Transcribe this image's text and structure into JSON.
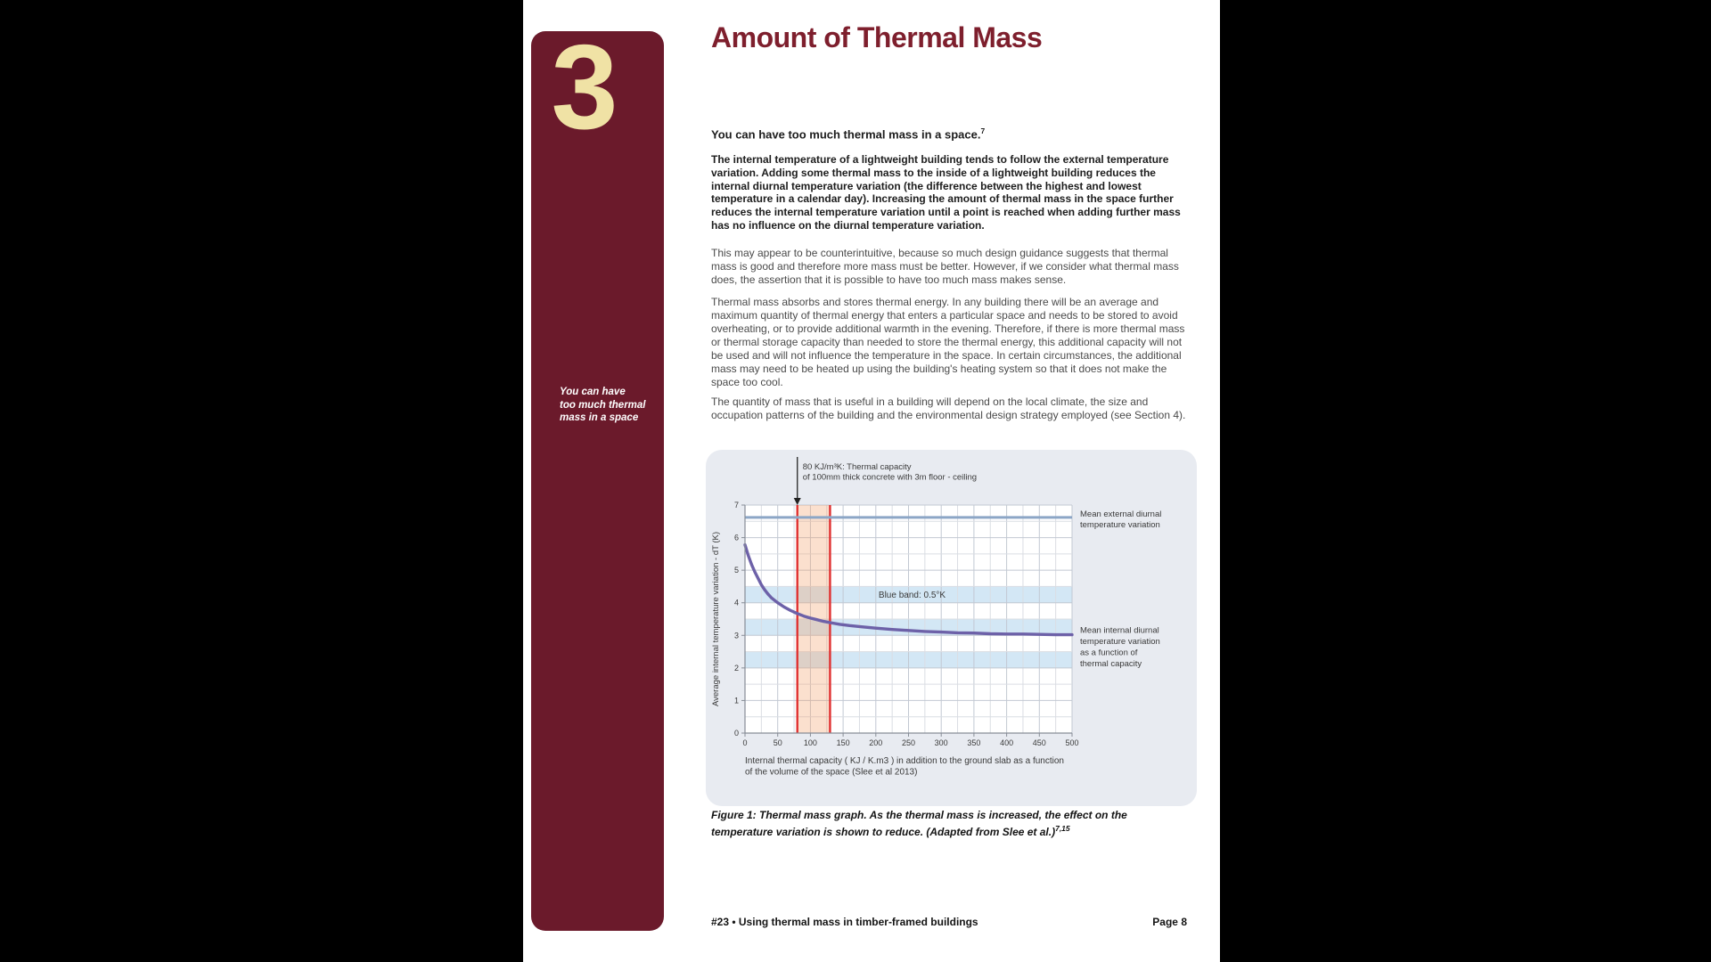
{
  "page": {
    "section_number": "3",
    "title": "Amount of Thermal Mass",
    "sidebar_note": [
      "You can have",
      "too much thermal",
      "mass in a space"
    ],
    "lead": {
      "text": "You can have too much thermal mass in a space.",
      "sup": "7"
    },
    "bold_paragraph": "The internal temperature of a lightweight building tends to follow the external temperature variation. Adding some thermal mass to the inside of a lightweight building reduces the internal diurnal temperature variation (the difference between the highest and lowest temperature in a calendar day). Increasing the amount of thermal mass in the space further reduces the internal temperature variation until a point is reached when adding further mass has no influence on the diurnal temperature variation.",
    "paragraphs": [
      "This may appear to be counterintuitive, because so much design guidance suggests that thermal mass is good and therefore more mass must be better. However, if we consider what thermal mass does, the assertion that it is possible to have too much mass makes sense.",
      "Thermal mass absorbs and stores thermal energy. In any building there will be an average and maximum quantity of thermal energy that enters a particular space and needs to be stored to avoid overheating, or to provide additional warmth in the evening. Therefore, if there is more thermal mass or thermal storage capacity than needed to store the thermal energy, this additional capacity will not be used and will not influence the temperature in the space. In certain circumstances, the additional mass may need to be heated up using the building's heating system so that it does not make the space too cool.",
      "The quantity of mass that is useful in a building will depend on the local climate, the size and occupation patterns of the building and the environmental design strategy employed (see Section 4)."
    ],
    "figure_caption": {
      "text": "Figure 1: Thermal mass graph. As the thermal mass is increased, the effect on the temperature variation is shown to reduce. (Adapted from Slee et al.)",
      "sup": "7,15"
    },
    "footer": {
      "left": "#23 • Using thermal mass in timber-framed buildings",
      "right": "Page 8"
    }
  },
  "colors": {
    "band_maroon": "#6B1A2B",
    "title_red": "#7E1F2D",
    "chapter_number_cream": "#F0E2A5",
    "panel_background": "#E8EBF1"
  },
  "chart_data": {
    "type": "line",
    "xlabel": "Internal thermal capacity ( KJ / K.m3 ) in addition to the ground slab as a function of the volume of the space (Slee et al 2013)",
    "xlabel_lines": [
      "Internal thermal capacity ( KJ / K.m3 ) in addition to the ground slab as a function",
      "of the volume of the space (Slee et al 2013)"
    ],
    "ylabel": "Average internal temperature variation - dT (K)",
    "xlim": [
      0,
      500
    ],
    "ylim": [
      0,
      7
    ],
    "x_ticks": [
      0,
      50,
      100,
      150,
      200,
      250,
      300,
      350,
      400,
      450,
      500
    ],
    "y_ticks": [
      0,
      1,
      2,
      3,
      4,
      5,
      6,
      7
    ],
    "x_minor_step": 25,
    "y_minor_step": 0.5,
    "grid": true,
    "annotation": {
      "x": 80,
      "lines": [
        "80 KJ/m³K: Thermal capacity",
        "of 100mm thick concrete with 3m floor - ceiling"
      ]
    },
    "external_line": {
      "value": 6.62,
      "color": "#8CA6C6",
      "label_lines": [
        "Mean external diurnal",
        "temperature variation"
      ]
    },
    "internal_label_lines": [
      "Mean internal diurnal",
      "temperature variation",
      "as a function of",
      "thermal capacity"
    ],
    "blue_bands": {
      "ranges": [
        [
          2.0,
          2.5
        ],
        [
          3.0,
          3.5
        ],
        [
          4.0,
          4.5
        ]
      ],
      "color": "#D3E7F5",
      "label": "Blue band: 0.5°K"
    },
    "red_band": {
      "from": 80,
      "to": 130,
      "fill": "#F2A066",
      "fill_opacity": 0.32,
      "edge": "#E03030"
    },
    "series": [
      {
        "name": "Mean internal diurnal temperature variation as a function of thermal capacity",
        "color": "#6D61A8",
        "points": [
          [
            0,
            5.78
          ],
          [
            5,
            5.45
          ],
          [
            10,
            5.18
          ],
          [
            15,
            4.95
          ],
          [
            20,
            4.75
          ],
          [
            25,
            4.55
          ],
          [
            30,
            4.4
          ],
          [
            35,
            4.27
          ],
          [
            40,
            4.16
          ],
          [
            45,
            4.08
          ],
          [
            50,
            4.0
          ],
          [
            60,
            3.87
          ],
          [
            70,
            3.76
          ],
          [
            80,
            3.67
          ],
          [
            90,
            3.59
          ],
          [
            100,
            3.53
          ],
          [
            110,
            3.48
          ],
          [
            120,
            3.43
          ],
          [
            130,
            3.39
          ],
          [
            145,
            3.34
          ],
          [
            160,
            3.3
          ],
          [
            180,
            3.26
          ],
          [
            200,
            3.22
          ],
          [
            225,
            3.18
          ],
          [
            250,
            3.15
          ],
          [
            275,
            3.12
          ],
          [
            300,
            3.1
          ],
          [
            325,
            3.08
          ],
          [
            350,
            3.07
          ],
          [
            375,
            3.05
          ],
          [
            400,
            3.04
          ],
          [
            425,
            3.04
          ],
          [
            450,
            3.03
          ],
          [
            475,
            3.02
          ],
          [
            500,
            3.02
          ]
        ]
      }
    ]
  }
}
